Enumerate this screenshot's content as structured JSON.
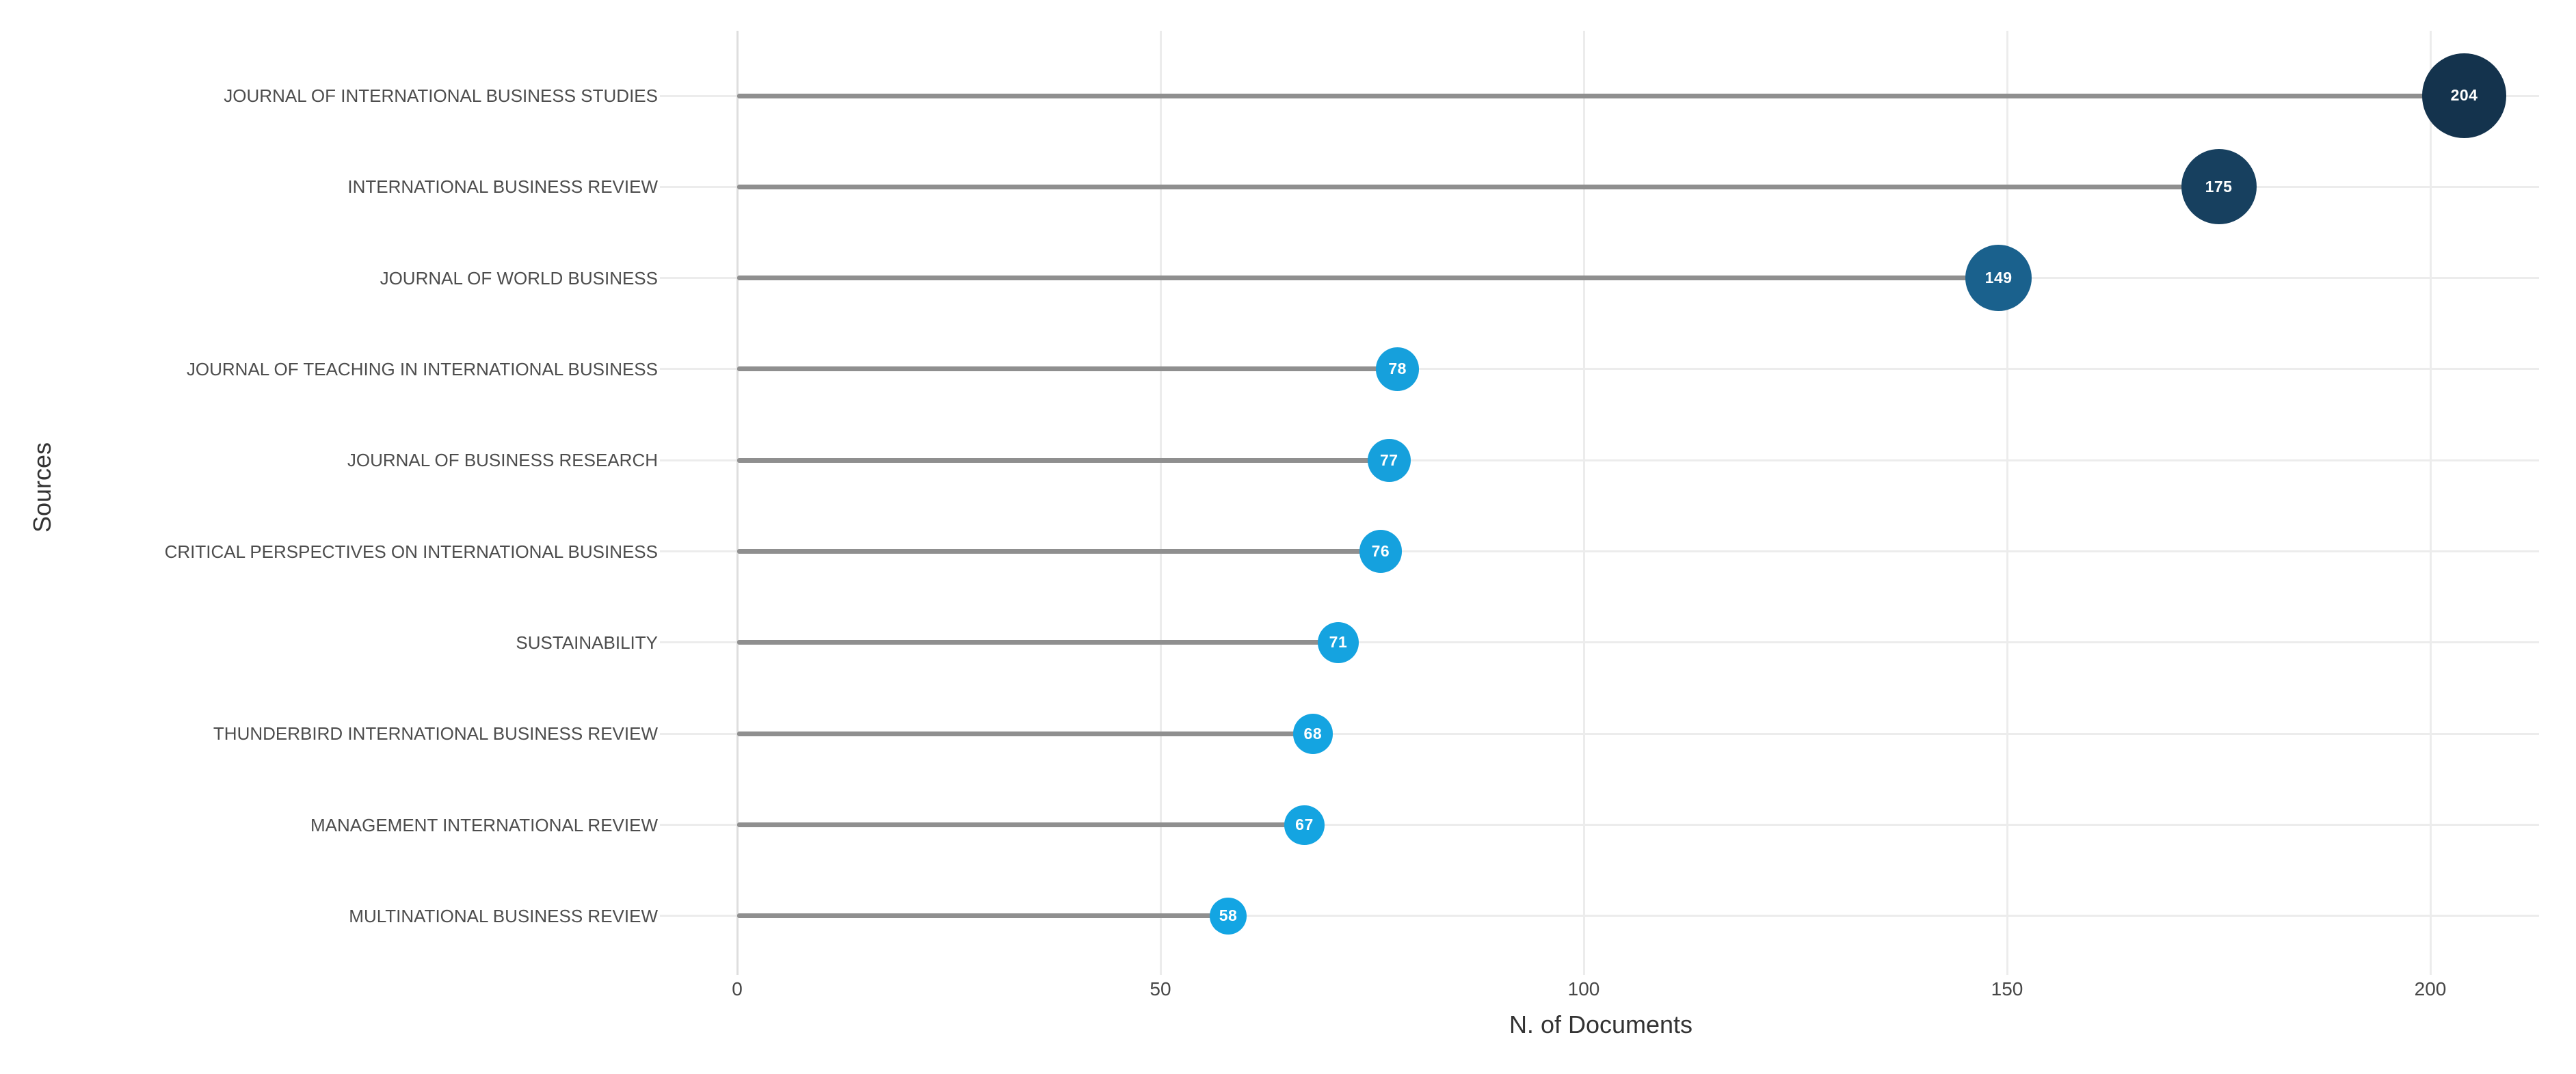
{
  "chart_data": {
    "type": "bar",
    "variant": "horizontal-lollipop",
    "title": "",
    "xlabel": "N. of Documents",
    "ylabel": "Sources",
    "categories": [
      "JOURNAL OF INTERNATIONAL BUSINESS STUDIES",
      "INTERNATIONAL BUSINESS REVIEW",
      "JOURNAL OF WORLD BUSINESS",
      "JOURNAL OF TEACHING IN INTERNATIONAL BUSINESS",
      "JOURNAL OF BUSINESS RESEARCH",
      "CRITICAL PERSPECTIVES ON INTERNATIONAL BUSINESS",
      "SUSTAINABILITY",
      "THUNDERBIRD INTERNATIONAL BUSINESS REVIEW",
      "MANAGEMENT INTERNATIONAL REVIEW",
      "MULTINATIONAL BUSINESS REVIEW"
    ],
    "values": [
      204,
      175,
      149,
      78,
      77,
      76,
      71,
      68,
      67,
      58
    ],
    "point_colors": [
      "#14334D",
      "#17405F",
      "#1A618D",
      "#16A0DC",
      "#16A0DC",
      "#15A1DE",
      "#15A3E0",
      "#14A4E1",
      "#14A4E1",
      "#13A5E3"
    ],
    "value_label_color": "#FFFFFF",
    "xticks": [
      0,
      50,
      100,
      150,
      200
    ],
    "xlim": [
      0,
      213
    ],
    "grid": true,
    "legend": false,
    "style": {
      "background": "#FFFFFF",
      "stick_color": "#8F8F8F",
      "grid_color": "#ECECEC",
      "zeroline_color": "#DEDEDE",
      "tick_label_color": "#474747",
      "category_label_color": "#4D4D4D",
      "axis_title_color": "#333333"
    }
  }
}
